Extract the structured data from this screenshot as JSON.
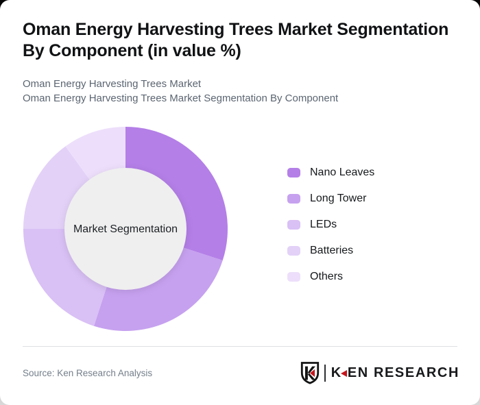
{
  "page": {
    "title": "Oman Energy Harvesting Trees Market Segmentation By Component (in value %)",
    "subtitle_line1": "Oman Energy Harvesting Trees Market",
    "subtitle_line2": "Oman Energy Harvesting Trees Market Segmentation By Component"
  },
  "chart_data": {
    "type": "pie",
    "variant": "donut",
    "title": "Oman Energy Harvesting Trees Market Segmentation By Component (in value %)",
    "units": "value %",
    "start_angle": "12 o'clock, clockwise",
    "center_label": "Market Segmentation",
    "hole_color": "#efefef",
    "legend_position": "right",
    "series": [
      {
        "name": "Nano Leaves",
        "value": 30,
        "color": "#b47fe7"
      },
      {
        "name": "Long Tower",
        "value": 25,
        "color": "#c6a1ef"
      },
      {
        "name": "LEDs",
        "value": 20,
        "color": "#d9c0f5"
      },
      {
        "name": "Batteries",
        "value": 15,
        "color": "#e3d1f8"
      },
      {
        "name": "Others",
        "value": 10,
        "color": "#eddffb"
      }
    ]
  },
  "footer": {
    "source": "Source: Ken Research Analysis",
    "logo": {
      "emblem_letter": "K",
      "wordmark_k": "K",
      "wordmark_rest": "EN RESEARCH",
      "brand_red": "#c4161c",
      "brand_black": "#17191b"
    }
  }
}
